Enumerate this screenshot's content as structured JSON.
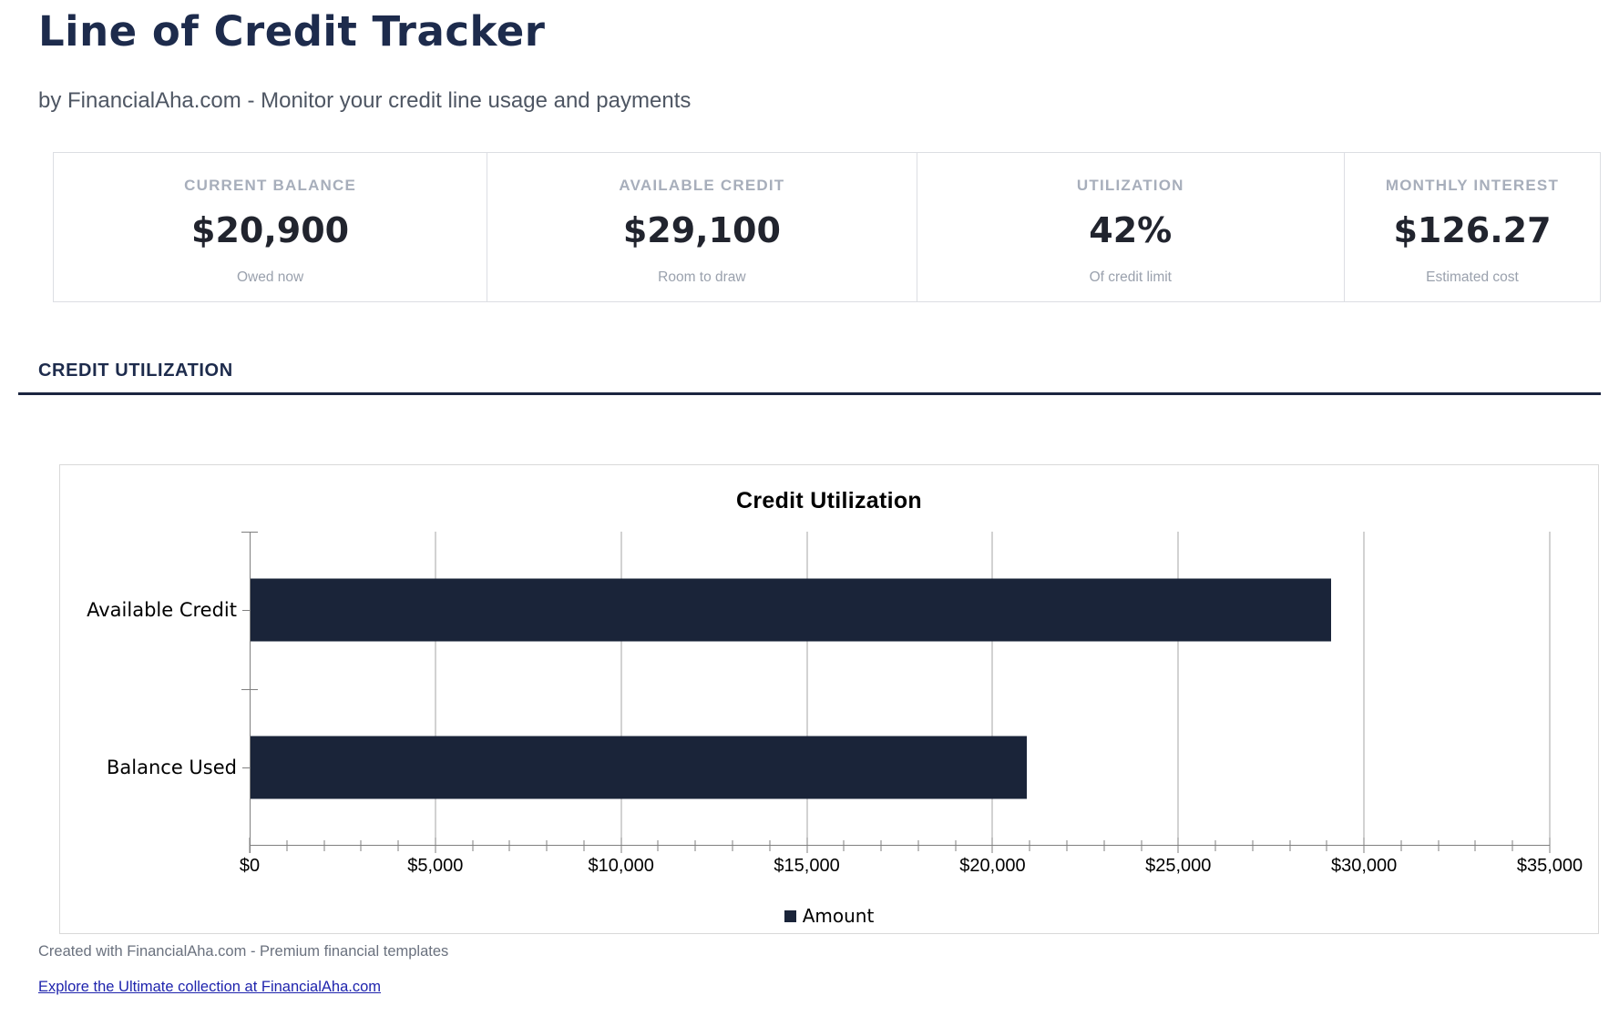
{
  "page": {
    "title": "Line of Credit Tracker",
    "subtitle": "by FinancialAha.com - Monitor your credit line usage and payments"
  },
  "stats": {
    "cards": [
      {
        "label": "CURRENT BALANCE",
        "value": "$20,900",
        "sublabel": "Owed now"
      },
      {
        "label": "AVAILABLE CREDIT",
        "value": "$29,100",
        "sublabel": "Room to draw"
      },
      {
        "label": "UTILIZATION",
        "value": "42%",
        "sublabel": "Of credit limit"
      },
      {
        "label": "MONTHLY INTEREST",
        "value": "$126.27",
        "sublabel": "Estimated cost"
      }
    ]
  },
  "section": {
    "heading": "CREDIT UTILIZATION"
  },
  "chart_data": {
    "type": "bar",
    "orientation": "horizontal",
    "title": "Credit Utilization",
    "categories": [
      "Available Credit",
      "Balance Used"
    ],
    "values": [
      29100,
      20900
    ],
    "series_name": "Amount",
    "xlim": [
      0,
      35000
    ],
    "x_major_tick": 5000,
    "x_minor_tick": 1000,
    "x_tick_labels": [
      "$0",
      "$5,000",
      "$10,000",
      "$15,000",
      "$20,000",
      "$25,000",
      "$30,000",
      "$35,000"
    ],
    "grid": true,
    "legend_position": "bottom",
    "bar_color": "#1a2439"
  },
  "footer": {
    "created": "Created with FinancialAha.com - Premium financial templates",
    "link": "Explore the Ultimate collection at FinancialAha.com"
  },
  "colors": {
    "accent_navy": "#1d2b4c",
    "rule_navy": "#1b2540",
    "bar_navy": "#1a2439",
    "muted_label": "#a7aebb",
    "muted_text": "#9aa1ad",
    "gridline": "#a6a6a6",
    "axis": "#7f7f7f",
    "link_blue": "#1f24ad"
  }
}
